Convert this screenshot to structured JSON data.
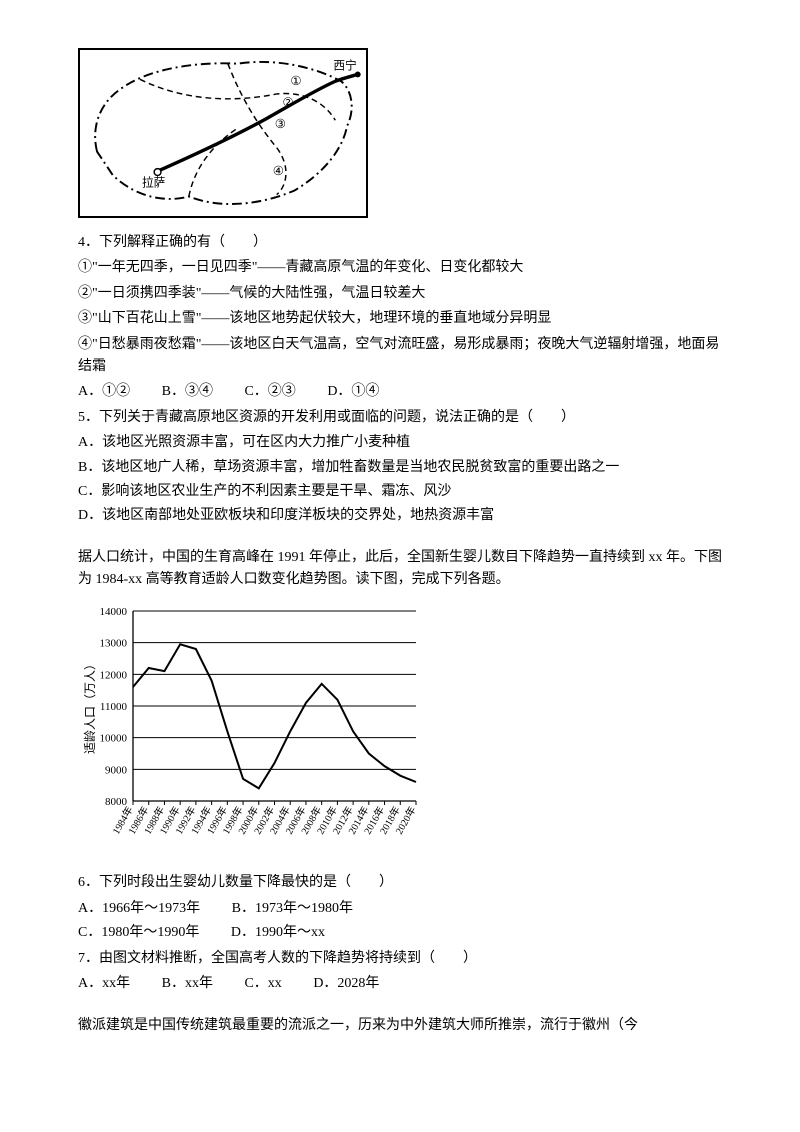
{
  "map": {
    "labels": {
      "xining": "西宁",
      "lasa": "拉萨",
      "m1": "①",
      "m2": "②",
      "m3": "③",
      "m4": "④"
    },
    "border_color": "#000000",
    "fill": "#ffffff"
  },
  "q4": {
    "stem": "4．下列解释正确的有（　　）",
    "s1": "①\"一年无四季，一日见四季\"——青藏高原气温的年变化、日变化都较大",
    "s2": "②\"一日须携四季装\"——气候的大陆性强，气温日较差大",
    "s3": "③\"山下百花山上雪\"——该地区地势起伏较大，地理环境的垂直地域分异明显",
    "s4": "④\"日愁暴雨夜愁霜\"——该地区白天气温高，空气对流旺盛，易形成暴雨；夜晚大气逆辐射增强，地面易结霜",
    "A": "A．①②",
    "B": "B．③④",
    "C": "C．②③",
    "D": "D．①④"
  },
  "q5": {
    "stem": "5．下列关于青藏高原地区资源的开发利用或面临的问题，说法正确的是（　　）",
    "A": "A．该地区光照资源丰富，可在区内大力推广小麦种植",
    "B": "B．该地区地广人稀，草场资源丰富，增加牲畜数量是当地农民脱贫致富的重要出路之一",
    "C": "C．影响该地区农业生产的不利因素主要是干旱、霜冻、风沙",
    "D": "D．该地区南部地处亚欧板块和印度洋板块的交界处，地热资源丰富"
  },
  "passage2": "据人口统计，中国的生育高峰在 1991 年停止，此后，全国新生婴儿数目下降趋势一直持续到 xx 年。下图为 1984-xx 高等教育适龄人口数变化趋势图。读下图，完成下列各题。",
  "chart": {
    "ylabel": "适龄人口（万人）",
    "ylim": [
      8000,
      14000
    ],
    "ytick_step": 1000,
    "yticks": [
      "8000",
      "9000",
      "10000",
      "11000",
      "12000",
      "13000",
      "14000"
    ],
    "xticks": [
      "1984年",
      "1986年",
      "1988年",
      "1990年",
      "1992年",
      "1994年",
      "1996年",
      "1998年",
      "2000年",
      "2002年",
      "2004年",
      "2006年",
      "2008年",
      "2010年",
      "2012年",
      "2014年",
      "2016年",
      "2018年",
      "2020年"
    ],
    "series": [
      {
        "x": 1984,
        "y": 11600
      },
      {
        "x": 1986,
        "y": 12200
      },
      {
        "x": 1988,
        "y": 12100
      },
      {
        "x": 1990,
        "y": 12950
      },
      {
        "x": 1992,
        "y": 12800
      },
      {
        "x": 1994,
        "y": 11800
      },
      {
        "x": 1996,
        "y": 10200
      },
      {
        "x": 1998,
        "y": 8700
      },
      {
        "x": 2000,
        "y": 8400
      },
      {
        "x": 2002,
        "y": 9200
      },
      {
        "x": 2004,
        "y": 10200
      },
      {
        "x": 2006,
        "y": 11100
      },
      {
        "x": 2008,
        "y": 11700
      },
      {
        "x": 2010,
        "y": 11200
      },
      {
        "x": 2012,
        "y": 10200
      },
      {
        "x": 2014,
        "y": 9500
      },
      {
        "x": 2016,
        "y": 9100
      },
      {
        "x": 2018,
        "y": 8800
      },
      {
        "x": 2020,
        "y": 8600
      }
    ],
    "line_color": "#000000",
    "grid_color": "#000000",
    "line_width": 2
  },
  "q6": {
    "stem": "6．下列时段出生婴幼儿数量下降最快的是（　　）",
    "A": "A．1966年～1973年",
    "B": "B．1973年～1980年",
    "C": "C．1980年～1990年",
    "D": "D．1990年～xx"
  },
  "q7": {
    "stem": "7．由图文材料推断，全国高考人数的下降趋势将持续到（　　）",
    "A": "A．xx年",
    "B": "B．xx年",
    "C": "C．xx",
    "D": "D．2028年"
  },
  "passage3": "徽派建筑是中国传统建筑最重要的流派之一，历来为中外建筑大师所推崇，流行于徽州（今"
}
